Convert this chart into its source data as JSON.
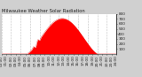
{
  "title": "Milwaukee Weather Solar Radiation",
  "background_color": "#d0d0d0",
  "plot_bg_color": "#ffffff",
  "fill_color": "#ff0000",
  "line_color": "#dd0000",
  "grid_color": "#888888",
  "x_min": 0,
  "x_max": 1440,
  "y_min": 0,
  "y_max": 800,
  "y_ticks": [
    100,
    200,
    300,
    400,
    500,
    600,
    700,
    800
  ],
  "num_points": 1440,
  "peak_minute": 760,
  "peak_value": 710,
  "sunrise_minute": 310,
  "sunset_minute": 1210,
  "title_fontsize": 3.8,
  "tick_fontsize": 3.0,
  "num_x_ticks": 25
}
